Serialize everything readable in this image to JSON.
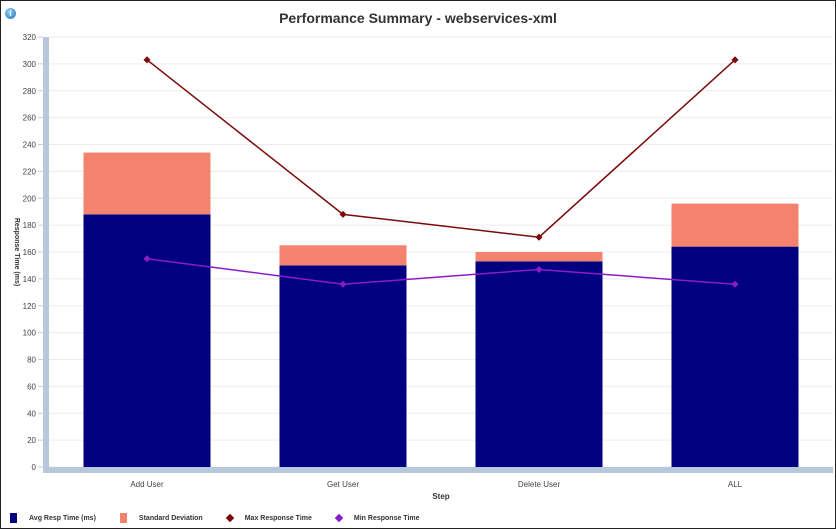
{
  "chart_data": {
    "type": "bar",
    "title": "Performance Summary - webservices-xml",
    "xlabel": "Step",
    "ylabel": "Response Time (ms)",
    "ylim": [
      0,
      320
    ],
    "yticks": [
      0,
      20,
      40,
      60,
      80,
      100,
      120,
      140,
      160,
      180,
      200,
      220,
      240,
      260,
      280,
      300,
      320
    ],
    "categories": [
      "Add User",
      "Get User",
      "Delete User",
      "ALL"
    ],
    "grid": true,
    "legend_position": "bottom",
    "series": [
      {
        "name": "Avg Resp Time (ms)",
        "kind": "stacked-bar",
        "color": "#000080",
        "values": [
          188,
          150,
          153,
          164
        ]
      },
      {
        "name": "Standard Deviation",
        "kind": "stacked-bar",
        "color": "#f4836e",
        "values": [
          46,
          15,
          7,
          32
        ]
      },
      {
        "name": "Max Response Time",
        "kind": "line",
        "color": "#7b0a0a",
        "values": [
          303,
          188,
          171,
          303
        ]
      },
      {
        "name": "Min Response Time",
        "kind": "line",
        "color": "#8a1cc8",
        "values": [
          155,
          136,
          147,
          136
        ]
      }
    ]
  }
}
